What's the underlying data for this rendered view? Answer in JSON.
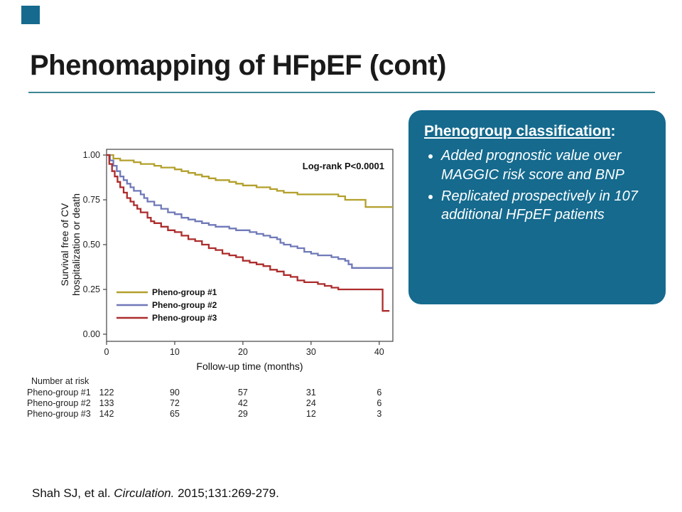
{
  "title": "Phenomapping of HFpEF (cont)",
  "colors": {
    "accent": "#156a8e",
    "rule": "#3c8796"
  },
  "box": {
    "heading": "Phenogroup classification",
    "heading_suffix": ":",
    "bullets": [
      "Added prognostic value over MAGGIC risk score and BNP",
      "Replicated prospectively in 107 additional HFpEF patients"
    ]
  },
  "citation": {
    "pre": "Shah SJ, et al. ",
    "journal": "Circulation.",
    "post": " 2015;131:269-279."
  },
  "chart_data": {
    "type": "line",
    "subtype": "kaplan-meier-step",
    "title": "",
    "annotation": "Log-rank P<0.0001",
    "xlabel": "Follow-up time (months)",
    "ylabel": "Survival free of CV hospitalization or death",
    "ylabel_lines": [
      "Survival free of CV",
      "hospitalization or death"
    ],
    "xlim": [
      0,
      42
    ],
    "ylim": [
      0,
      1.0
    ],
    "xticks": [
      0,
      10,
      20,
      30,
      40
    ],
    "yticks": [
      0.0,
      0.25,
      0.5,
      0.75,
      1.0
    ],
    "grid": false,
    "legend_position": "lower-left-inside",
    "series": [
      {
        "name": "Pheno-group #1",
        "color": "#b3a02c",
        "points": [
          [
            0,
            1.0
          ],
          [
            1,
            0.98
          ],
          [
            2,
            0.97
          ],
          [
            4,
            0.96
          ],
          [
            5,
            0.95
          ],
          [
            7,
            0.94
          ],
          [
            8,
            0.93
          ],
          [
            10,
            0.92
          ],
          [
            11,
            0.91
          ],
          [
            12,
            0.9
          ],
          [
            13,
            0.89
          ],
          [
            14,
            0.88
          ],
          [
            15,
            0.87
          ],
          [
            16,
            0.86
          ],
          [
            18,
            0.85
          ],
          [
            19,
            0.84
          ],
          [
            20,
            0.83
          ],
          [
            22,
            0.82
          ],
          [
            24,
            0.81
          ],
          [
            25,
            0.8
          ],
          [
            26,
            0.79
          ],
          [
            28,
            0.78
          ],
          [
            34,
            0.77
          ],
          [
            35,
            0.75
          ],
          [
            38,
            0.71
          ],
          [
            42,
            0.71
          ]
        ]
      },
      {
        "name": "Pheno-group #2",
        "color": "#6f79b8",
        "points": [
          [
            0,
            1.0
          ],
          [
            0.5,
            0.97
          ],
          [
            1,
            0.94
          ],
          [
            1.5,
            0.91
          ],
          [
            2,
            0.88
          ],
          [
            2.5,
            0.86
          ],
          [
            3,
            0.84
          ],
          [
            3.5,
            0.82
          ],
          [
            4,
            0.8
          ],
          [
            5,
            0.78
          ],
          [
            5.5,
            0.76
          ],
          [
            6,
            0.74
          ],
          [
            7,
            0.72
          ],
          [
            8,
            0.7
          ],
          [
            9,
            0.68
          ],
          [
            10,
            0.67
          ],
          [
            11,
            0.65
          ],
          [
            12,
            0.64
          ],
          [
            13,
            0.63
          ],
          [
            14,
            0.62
          ],
          [
            15,
            0.61
          ],
          [
            16,
            0.6
          ],
          [
            18,
            0.59
          ],
          [
            19,
            0.58
          ],
          [
            21,
            0.57
          ],
          [
            22,
            0.56
          ],
          [
            23,
            0.55
          ],
          [
            24,
            0.54
          ],
          [
            25,
            0.53
          ],
          [
            25.5,
            0.51
          ],
          [
            26,
            0.5
          ],
          [
            27,
            0.49
          ],
          [
            28,
            0.48
          ],
          [
            29,
            0.46
          ],
          [
            30,
            0.45
          ],
          [
            31,
            0.44
          ],
          [
            33,
            0.43
          ],
          [
            34,
            0.42
          ],
          [
            35,
            0.41
          ],
          [
            35.5,
            0.39
          ],
          [
            36,
            0.37
          ],
          [
            42,
            0.37
          ]
        ]
      },
      {
        "name": "Pheno-group #3",
        "color": "#ad2c2c",
        "points": [
          [
            0,
            1.0
          ],
          [
            0.4,
            0.95
          ],
          [
            0.8,
            0.91
          ],
          [
            1.2,
            0.88
          ],
          [
            1.6,
            0.85
          ],
          [
            2,
            0.82
          ],
          [
            2.5,
            0.79
          ],
          [
            3,
            0.76
          ],
          [
            3.5,
            0.74
          ],
          [
            4,
            0.72
          ],
          [
            4.5,
            0.7
          ],
          [
            5,
            0.68
          ],
          [
            6,
            0.65
          ],
          [
            6.5,
            0.63
          ],
          [
            7,
            0.62
          ],
          [
            8,
            0.6
          ],
          [
            9,
            0.58
          ],
          [
            10,
            0.57
          ],
          [
            11,
            0.55
          ],
          [
            12,
            0.53
          ],
          [
            13,
            0.52
          ],
          [
            14,
            0.5
          ],
          [
            15,
            0.48
          ],
          [
            16,
            0.47
          ],
          [
            17,
            0.45
          ],
          [
            18,
            0.44
          ],
          [
            19,
            0.43
          ],
          [
            20,
            0.41
          ],
          [
            21,
            0.4
          ],
          [
            22,
            0.39
          ],
          [
            23,
            0.38
          ],
          [
            24,
            0.36
          ],
          [
            25,
            0.35
          ],
          [
            26,
            0.33
          ],
          [
            27,
            0.32
          ],
          [
            28,
            0.3
          ],
          [
            29,
            0.29
          ],
          [
            31,
            0.28
          ],
          [
            32,
            0.27
          ],
          [
            33,
            0.26
          ],
          [
            34,
            0.25
          ],
          [
            40,
            0.25
          ],
          [
            40.5,
            0.13
          ],
          [
            41.5,
            0.13
          ]
        ]
      }
    ],
    "number_at_risk": {
      "label": "Number at risk",
      "time_points": [
        0,
        10,
        20,
        30,
        40
      ],
      "rows": [
        {
          "name": "Pheno-group #1",
          "values": [
            122,
            90,
            57,
            31,
            6
          ]
        },
        {
          "name": "Pheno-group #2",
          "values": [
            133,
            72,
            42,
            24,
            6
          ]
        },
        {
          "name": "Pheno-group #3",
          "values": [
            142,
            65,
            29,
            12,
            3
          ]
        }
      ]
    }
  }
}
